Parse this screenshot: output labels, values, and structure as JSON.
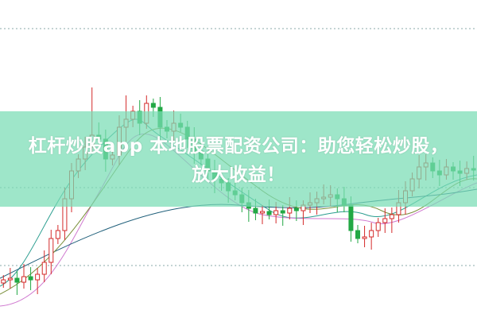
{
  "article": {
    "title_line1": "杠杆炒股app 本地股票配资公司：助您轻松炒股，",
    "title_line2": "放大收益！"
  },
  "colors": {
    "banner": "#9ee3c9",
    "up_candle": "#d42a2a",
    "down_candle": "#22a845",
    "ma_lines": [
      "#2a9d8f",
      "#d07ad0",
      "#1f5f7a",
      "#7a8f3a"
    ]
  }
}
